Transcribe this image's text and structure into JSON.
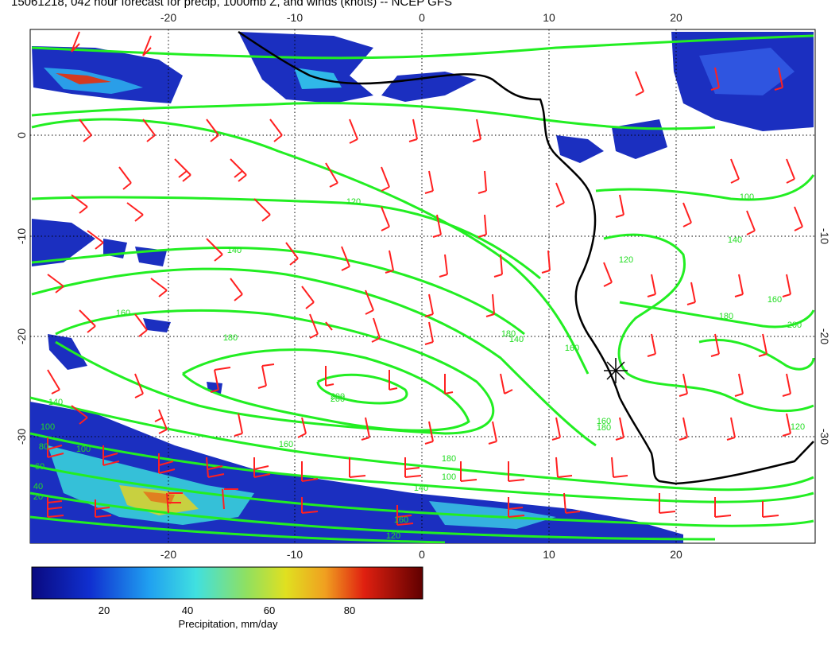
{
  "title": "15061218, 042 hour forecast for precip, 1000mb Z, and winds (knots) -- NCEP GFS",
  "map": {
    "lon_range": [
      -31,
      31
    ],
    "lat_range": [
      -40,
      10
    ],
    "lon_ticks": [
      "-20",
      "-10",
      "0",
      "10",
      "20"
    ],
    "lat_ticks": [
      "0",
      "-10",
      "-20",
      "-30"
    ],
    "contour_labels": [
      "120",
      "140",
      "160",
      "180",
      "200",
      "140",
      "160",
      "180",
      "100",
      "120",
      "140",
      "160",
      "180",
      "200",
      "120",
      "140",
      "160",
      "180",
      "100",
      "140",
      "160",
      "120",
      "100",
      "80",
      "60",
      "40",
      "20",
      "160",
      "180",
      "200",
      "100"
    ],
    "colors": {
      "contour": "#22ee22",
      "barb": "#ff2020",
      "coast": "#000000"
    }
  },
  "colorbar": {
    "label": "Precipitation, mm/day",
    "ticks": [
      "20",
      "40",
      "60",
      "80"
    ],
    "range": [
      0,
      100
    ]
  }
}
